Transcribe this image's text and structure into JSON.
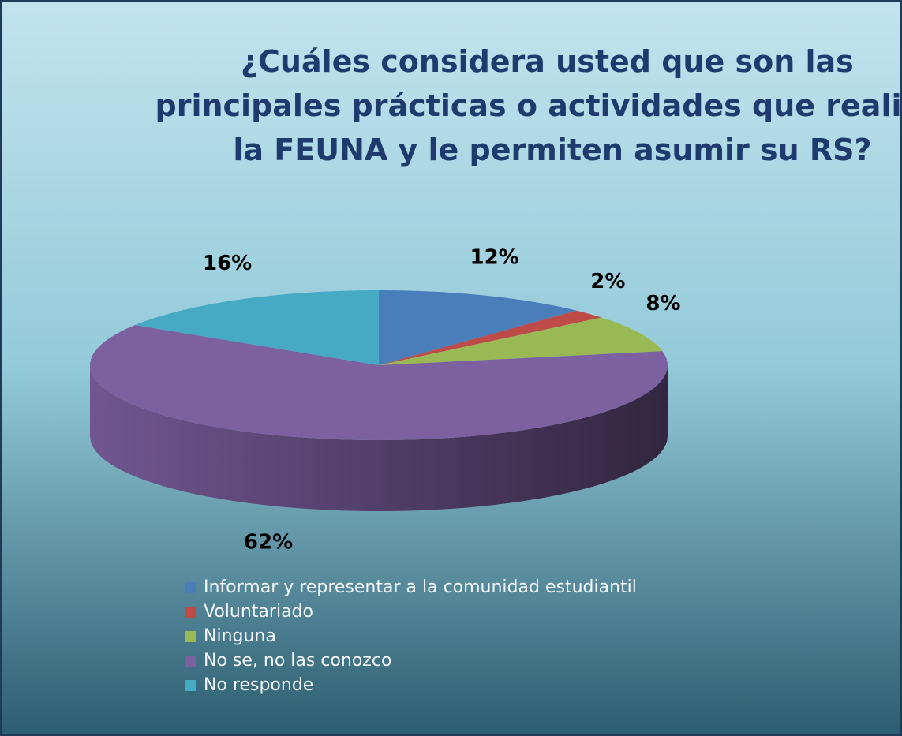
{
  "chart_data": {
    "type": "pie3d",
    "title": "¿Cuáles considera usted que son las principales prácticas o actividades que realiza la FEUNA y le permiten asumir su RS?",
    "categories": [
      "Informar y representar a la comunidad estudiantil",
      "Voluntariado",
      "Ninguna",
      "No se, no las conozco",
      "No responde"
    ],
    "values": [
      12,
      2,
      8,
      62,
      16
    ],
    "value_labels": [
      "12%",
      "2%",
      "8%",
      "62%",
      "16%"
    ],
    "colors": [
      "#4a7ebb",
      "#be4b48",
      "#98b954",
      "#7d60a0",
      "#46aac5"
    ],
    "legend": "bottom"
  }
}
